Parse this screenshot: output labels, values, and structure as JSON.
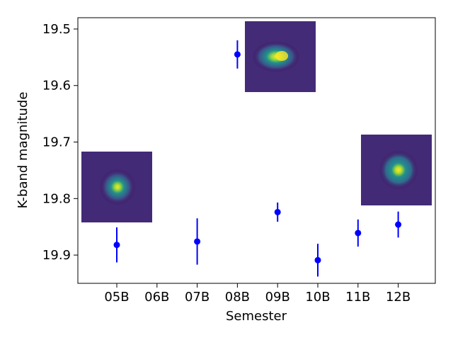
{
  "chart_data": {
    "type": "scatter",
    "title": "",
    "xlabel": "Semester",
    "ylabel": "K-band magnitude",
    "categories": [
      "05B",
      "06B",
      "07B",
      "08B",
      "09B",
      "10B",
      "11B",
      "12B"
    ],
    "y_inverted": true,
    "ylim": [
      19.95,
      19.48
    ],
    "yticks": [
      "19.5",
      "19.6",
      "19.7",
      "19.8",
      "19.9"
    ],
    "grid": false,
    "legend": "none",
    "marker_color": "#0000ff",
    "series": [
      {
        "points": [
          {
            "x": "05B",
            "y": 19.882,
            "err": 0.031
          },
          {
            "x": "07B",
            "y": 19.876,
            "err": 0.041
          },
          {
            "x": "08B",
            "y": 19.545,
            "err": 0.025
          },
          {
            "x": "09B",
            "y": 19.824,
            "err": 0.017
          },
          {
            "x": "10B",
            "y": 19.909,
            "err": 0.029
          },
          {
            "x": "11B",
            "y": 19.861,
            "err": 0.024
          },
          {
            "x": "12B",
            "y": 19.846,
            "err": 0.023
          }
        ]
      }
    ],
    "insets": [
      {
        "name": "inset-left",
        "description": "source-cutout",
        "near": "05B"
      },
      {
        "name": "inset-top",
        "description": "source-cutout",
        "near": "09B"
      },
      {
        "name": "inset-right",
        "description": "source-cutout",
        "near": "12B"
      }
    ],
    "colormap": [
      "#440154",
      "#3b528b",
      "#21918c",
      "#5ec962",
      "#fde725"
    ]
  }
}
